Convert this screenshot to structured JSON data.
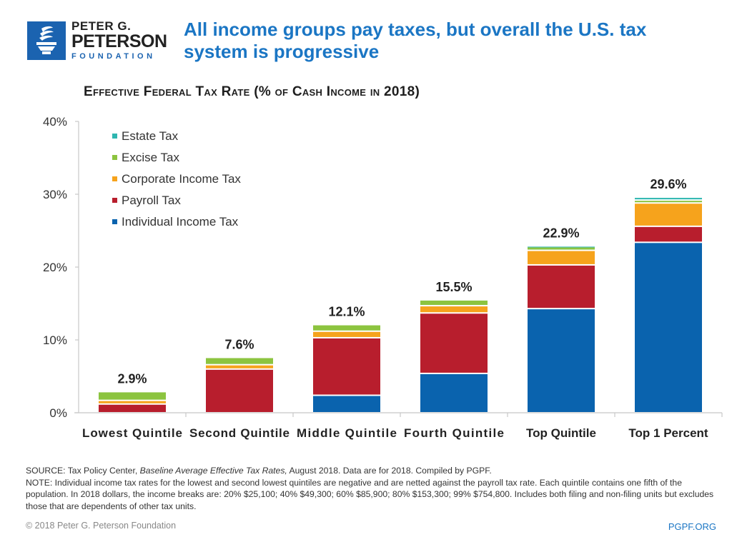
{
  "header": {
    "logo": {
      "line1": "PETER G.",
      "line2": "PETERSON",
      "line3": "FOUNDATION",
      "icon": "torch-icon",
      "brand_color": "#1b63b0"
    },
    "headline": "All income groups pay taxes, but overall the U.S. tax system is progressive"
  },
  "chart_data": {
    "type": "bar",
    "stacked": true,
    "title": "Effective Federal Tax Rate (% of Cash Income in 2018)",
    "xlabel": "",
    "ylabel": "",
    "ylim": [
      0,
      40
    ],
    "yticks": [
      0,
      10,
      20,
      30,
      40
    ],
    "ytick_labels": [
      "0%",
      "10%",
      "20%",
      "30%",
      "40%"
    ],
    "grid": false,
    "legend_position": "top-left",
    "categories": [
      "Lowest Quintile",
      "Second Quintile",
      "Middle Quintile",
      "Fourth Quintile",
      "Top Quintile",
      "Top 1 Percent"
    ],
    "totals": [
      2.9,
      7.6,
      12.1,
      15.5,
      22.9,
      29.6
    ],
    "total_labels": [
      "2.9%",
      "7.6%",
      "12.1%",
      "15.5%",
      "22.9%",
      "29.6%"
    ],
    "series": [
      {
        "name": "Individual Income Tax",
        "color": "#0a63ae",
        "values": [
          0,
          0,
          2.4,
          5.4,
          14.3,
          23.4
        ]
      },
      {
        "name": "Payroll Tax",
        "color": "#b81e2d",
        "values": [
          1.2,
          6.0,
          7.9,
          8.3,
          6.0,
          2.2
        ]
      },
      {
        "name": "Corporate Income Tax",
        "color": "#f6a31c",
        "values": [
          0.5,
          0.6,
          0.9,
          1.0,
          2.0,
          3.2
        ]
      },
      {
        "name": "Excise Tax",
        "color": "#8cc43f",
        "values": [
          1.2,
          1.0,
          0.9,
          0.8,
          0.5,
          0.4
        ]
      },
      {
        "name": "Estate Tax",
        "color": "#2fb6b0",
        "values": [
          0,
          0,
          0,
          0,
          0.1,
          0.4
        ]
      }
    ],
    "legend_order": [
      "Estate Tax",
      "Excise Tax",
      "Corporate Income Tax",
      "Payroll Tax",
      "Individual Income Tax"
    ]
  },
  "footer": {
    "source_prefix": "SOURCE: Tax Policy Center, ",
    "source_italic": "Baseline Average Effective Tax Rates,",
    "source_suffix": " August 2018. Data are for 2018. Compiled by PGPF.",
    "note": "NOTE: Individual income tax rates for the lowest and second lowest quintiles are negative and are netted against the payroll tax rate. Each quintile contains one fifth of the population. In 2018 dollars, the income breaks are: 20% $25,100; 40% $49,300; 60% $85,900; 80% $153,300; 99% $754,800. Includes both filing and non-filing units but excludes those that are dependents of other tax units.",
    "copyright": "© 2018 Peter G. Peterson Foundation",
    "site": "PGPF.ORG"
  }
}
